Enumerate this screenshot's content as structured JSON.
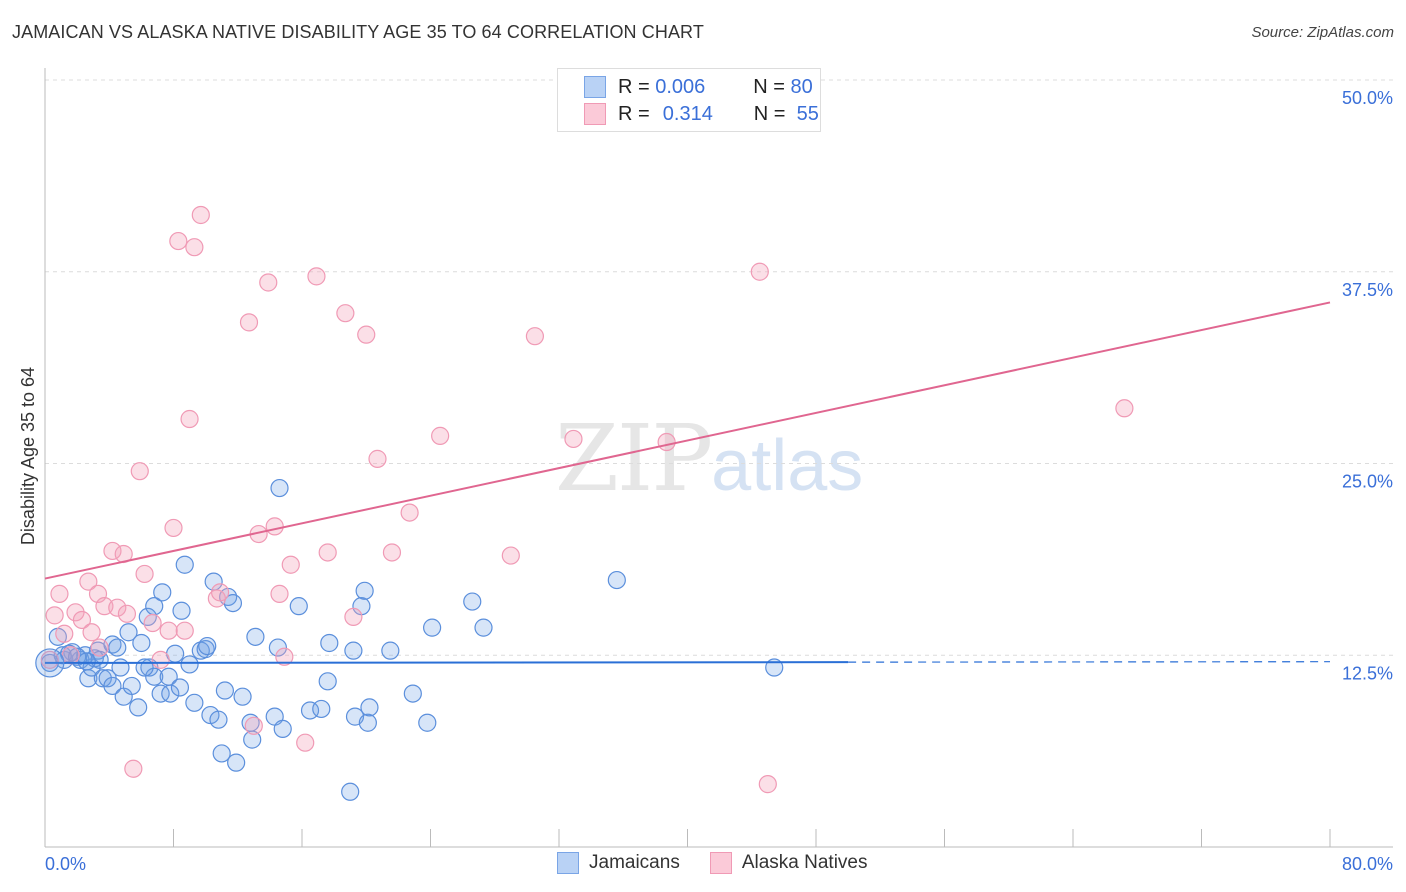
{
  "chart_data": {
    "type": "scatter",
    "title": "JAMAICAN VS ALASKA NATIVE DISABILITY AGE 35 TO 64 CORRELATION CHART",
    "source": "Source: ZipAtlas.com",
    "xlabel": "",
    "ylabel": "Disability Age 35 to 64",
    "xlim": [
      0,
      80
    ],
    "ylim": [
      0,
      50
    ],
    "x_tick_labels": [
      "0.0%",
      "80.0%"
    ],
    "y_ticks": [
      12.5,
      25,
      37.5,
      50
    ],
    "y_tick_labels": [
      "12.5%",
      "25.0%",
      "37.5%",
      "50.0%"
    ],
    "grid": true,
    "legend_position": "top-center",
    "watermark": "ZIPatlas",
    "series": [
      {
        "name": "Jamaicans",
        "color": "#6fa0e6",
        "line_color": "#2a6fd6",
        "R": "0.006",
        "N": "80",
        "trend": {
          "x": [
            0,
            50
          ],
          "y": [
            12.0,
            12.05
          ],
          "dashed_to": 80
        },
        "points": [
          [
            0.3,
            12.0
          ],
          [
            0.8,
            13.7
          ],
          [
            1.2,
            12.2
          ],
          [
            1.7,
            12.7
          ],
          [
            2.2,
            12.2
          ],
          [
            2.7,
            11.0
          ],
          [
            2.9,
            11.7
          ],
          [
            3.3,
            12.8
          ],
          [
            3.6,
            11.0
          ],
          [
            3.9,
            11.0
          ],
          [
            4.2,
            13.2
          ],
          [
            4.5,
            13.0
          ],
          [
            4.2,
            10.5
          ],
          [
            4.9,
            9.8
          ],
          [
            5.2,
            14.0
          ],
          [
            5.4,
            10.5
          ],
          [
            5.8,
            9.1
          ],
          [
            6.0,
            13.3
          ],
          [
            6.4,
            15.0
          ],
          [
            6.5,
            11.7
          ],
          [
            6.8,
            15.7
          ],
          [
            6.8,
            11.1
          ],
          [
            7.2,
            10.0
          ],
          [
            7.3,
            16.6
          ],
          [
            7.7,
            11.1
          ],
          [
            7.8,
            10.0
          ],
          [
            8.1,
            12.6
          ],
          [
            8.4,
            10.4
          ],
          [
            8.5,
            15.4
          ],
          [
            8.7,
            18.4
          ],
          [
            9.0,
            11.9
          ],
          [
            9.3,
            9.4
          ],
          [
            9.7,
            12.8
          ],
          [
            10.0,
            12.9
          ],
          [
            10.1,
            13.1
          ],
          [
            10.3,
            8.6
          ],
          [
            10.5,
            17.3
          ],
          [
            10.8,
            8.3
          ],
          [
            11.0,
            6.1
          ],
          [
            11.2,
            10.2
          ],
          [
            11.4,
            16.3
          ],
          [
            11.7,
            15.9
          ],
          [
            11.9,
            5.5
          ],
          [
            12.3,
            9.8
          ],
          [
            12.8,
            8.1
          ],
          [
            12.9,
            7.0
          ],
          [
            13.1,
            13.7
          ],
          [
            14.3,
            8.5
          ],
          [
            14.6,
            23.4
          ],
          [
            14.8,
            7.7
          ],
          [
            14.5,
            13.0
          ],
          [
            15.8,
            15.7
          ],
          [
            16.5,
            8.9
          ],
          [
            17.2,
            9.0
          ],
          [
            17.6,
            10.8
          ],
          [
            17.7,
            13.3
          ],
          [
            19.0,
            3.6
          ],
          [
            19.2,
            12.8
          ],
          [
            19.3,
            8.5
          ],
          [
            19.7,
            15.7
          ],
          [
            19.9,
            16.7
          ],
          [
            20.1,
            8.1
          ],
          [
            20.2,
            9.1
          ],
          [
            21.5,
            12.8
          ],
          [
            22.9,
            10.0
          ],
          [
            23.8,
            8.1
          ],
          [
            24.1,
            14.3
          ],
          [
            26.6,
            16.0
          ],
          [
            27.3,
            14.3
          ],
          [
            35.6,
            17.4
          ],
          [
            45.4,
            11.7
          ],
          [
            1.1,
            12.5
          ],
          [
            2.5,
            12.5
          ],
          [
            3.1,
            12.3
          ],
          [
            3.4,
            12.2
          ],
          [
            4.7,
            11.7
          ],
          [
            6.2,
            11.7
          ],
          [
            1.5,
            12.6
          ],
          [
            2.0,
            12.4
          ],
          [
            2.6,
            12.1
          ]
        ]
      },
      {
        "name": "Alaska Natives",
        "color": "#f4a3bb",
        "line_color": "#e06690",
        "R": "0.314",
        "N": "55",
        "trend": {
          "x": [
            0,
            80
          ],
          "y": [
            17.5,
            35.5
          ]
        },
        "points": [
          [
            0.6,
            15.1
          ],
          [
            0.9,
            16.5
          ],
          [
            1.2,
            13.9
          ],
          [
            1.9,
            15.3
          ],
          [
            2.3,
            14.8
          ],
          [
            2.7,
            17.3
          ],
          [
            2.9,
            14.0
          ],
          [
            3.3,
            16.5
          ],
          [
            3.7,
            15.7
          ],
          [
            4.2,
            19.3
          ],
          [
            4.5,
            15.6
          ],
          [
            4.9,
            19.1
          ],
          [
            5.1,
            15.2
          ],
          [
            5.5,
            5.1
          ],
          [
            5.9,
            24.5
          ],
          [
            6.2,
            17.8
          ],
          [
            6.7,
            14.6
          ],
          [
            7.2,
            12.2
          ],
          [
            7.7,
            14.1
          ],
          [
            8.0,
            20.8
          ],
          [
            8.3,
            39.5
          ],
          [
            8.7,
            14.1
          ],
          [
            9.0,
            27.9
          ],
          [
            9.3,
            39.1
          ],
          [
            9.7,
            41.2
          ],
          [
            10.7,
            16.2
          ],
          [
            10.9,
            16.6
          ],
          [
            12.7,
            34.2
          ],
          [
            13.0,
            7.9
          ],
          [
            13.3,
            20.4
          ],
          [
            13.9,
            36.8
          ],
          [
            14.3,
            20.9
          ],
          [
            14.6,
            16.5
          ],
          [
            14.9,
            12.4
          ],
          [
            15.3,
            18.4
          ],
          [
            16.2,
            6.8
          ],
          [
            16.9,
            37.2
          ],
          [
            17.6,
            19.2
          ],
          [
            18.7,
            34.8
          ],
          [
            19.2,
            15.0
          ],
          [
            20.0,
            33.4
          ],
          [
            20.7,
            25.3
          ],
          [
            21.6,
            19.2
          ],
          [
            22.7,
            21.8
          ],
          [
            24.6,
            26.8
          ],
          [
            29.0,
            19.0
          ],
          [
            30.5,
            33.3
          ],
          [
            32.9,
            26.6
          ],
          [
            38.7,
            26.4
          ],
          [
            44.5,
            37.5
          ],
          [
            45.0,
            4.1
          ],
          [
            67.2,
            28.6
          ],
          [
            0.3,
            12.2
          ],
          [
            1.6,
            12.5
          ],
          [
            3.4,
            13.0
          ]
        ]
      }
    ]
  }
}
